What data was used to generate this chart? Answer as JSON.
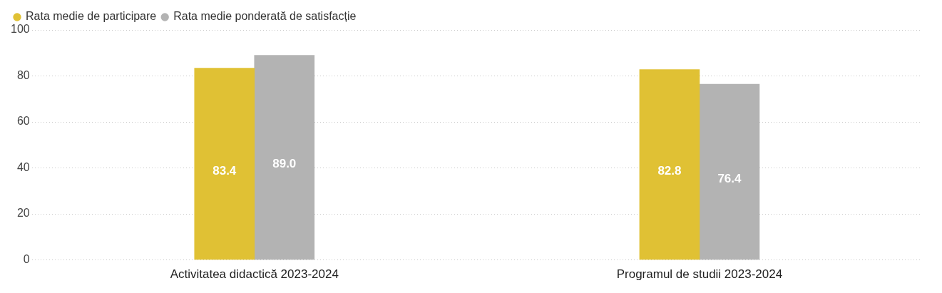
{
  "chart_data": {
    "type": "bar",
    "categories": [
      "Activitatea didactică 2023-2024",
      "Programul de studii 2023-2024"
    ],
    "series": [
      {
        "name": "Rata medie de participare",
        "color": "#e0c134",
        "values": [
          83.4,
          82.8
        ]
      },
      {
        "name": "Rata medie ponderată de satisfacție",
        "color": "#b3b3b3",
        "values": [
          89.0,
          76.4
        ]
      }
    ],
    "value_labels": [
      [
        "83.4",
        "82.8"
      ],
      [
        "89.0",
        "76.4"
      ]
    ],
    "ylim": [
      0,
      100
    ],
    "yticks": [
      0,
      20,
      40,
      60,
      80,
      100
    ],
    "grid": "y",
    "legend": "top left"
  }
}
